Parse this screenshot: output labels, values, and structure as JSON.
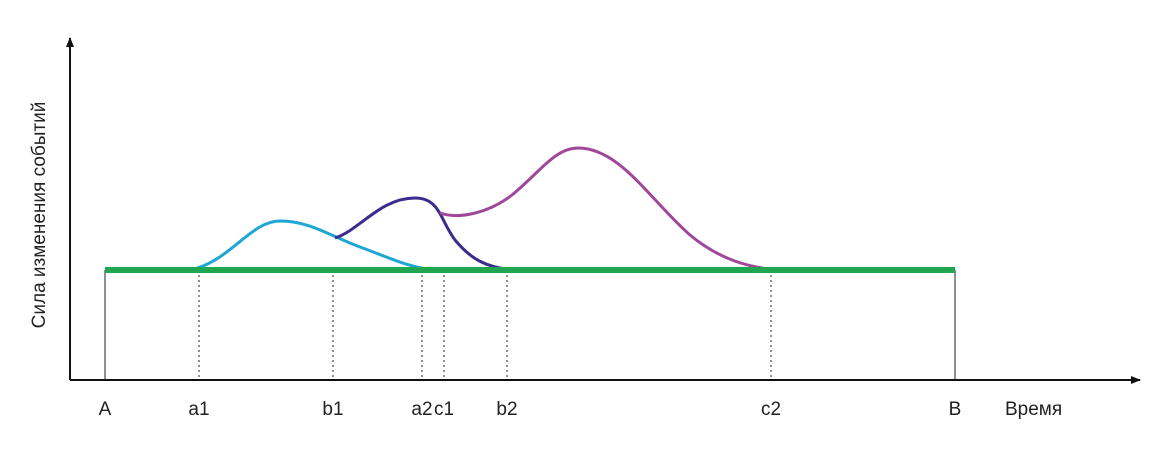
{
  "y_axis_label": "Сила изменения событий",
  "x_axis_label": "Время",
  "points": [
    "A",
    "a1",
    "b1",
    "a2",
    "c1",
    "b2",
    "c2",
    "B"
  ]
}
